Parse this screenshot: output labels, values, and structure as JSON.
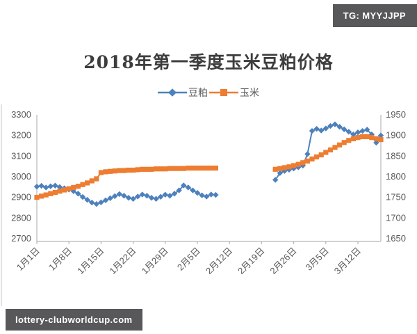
{
  "badges": {
    "top_right": "TG: MYYJJPP",
    "bottom_left": "lottery-clubworldcup.com",
    "background_color": "#58585a",
    "text_color": "#ffffff"
  },
  "chart_data": {
    "type": "line",
    "title": "2018年第一季度玉米豆粕价格",
    "title_color": "#3d3d3d",
    "axis_text_color": "#595959",
    "axis_line_color": "#b7b7b7",
    "grid": false,
    "legend_position": "top",
    "x_unit": "day of 2018 (1 = 1月1日)",
    "x_range_days": [
      1,
      76
    ],
    "x_tick_days": [
      1,
      8,
      15,
      22,
      29,
      36,
      43,
      50,
      57,
      64,
      71
    ],
    "x_tick_labels": [
      "1月1日",
      "1月8日",
      "1月15日",
      "1月22日",
      "1月29日",
      "2月5日",
      "2月12日",
      "2月19日",
      "2月26日",
      "3月5日",
      "3月12日"
    ],
    "left_axis": {
      "min": 2700,
      "max": 3300,
      "ticks": [
        3300,
        3200,
        3100,
        3000,
        2900,
        2800,
        2700
      ]
    },
    "right_axis": {
      "min": 1650,
      "max": 1950,
      "ticks": [
        1950,
        1900,
        1850,
        1800,
        1750,
        1700,
        1650
      ]
    },
    "data_gap": "no data for 2月10日–2月21日 (market closed around Spring Festival)",
    "series": [
      {
        "id": "soybean-meal",
        "name": "豆粕",
        "axis": "left",
        "color": "#4d81bd",
        "marker": "diamond",
        "points": [
          [
            1,
            2952
          ],
          [
            2,
            2956
          ],
          [
            3,
            2948
          ],
          [
            4,
            2954
          ],
          [
            5,
            2957
          ],
          [
            6,
            2950
          ],
          [
            7,
            2944
          ],
          [
            8,
            2938
          ],
          [
            9,
            2930
          ],
          [
            10,
            2918
          ],
          [
            11,
            2902
          ],
          [
            12,
            2888
          ],
          [
            13,
            2875
          ],
          [
            14,
            2868
          ],
          [
            15,
            2876
          ],
          [
            16,
            2886
          ],
          [
            17,
            2896
          ],
          [
            18,
            2906
          ],
          [
            19,
            2916
          ],
          [
            20,
            2908
          ],
          [
            21,
            2898
          ],
          [
            22,
            2893
          ],
          [
            23,
            2904
          ],
          [
            24,
            2914
          ],
          [
            25,
            2908
          ],
          [
            26,
            2898
          ],
          [
            27,
            2893
          ],
          [
            28,
            2903
          ],
          [
            29,
            2913
          ],
          [
            30,
            2908
          ],
          [
            31,
            2918
          ],
          [
            32,
            2934
          ],
          [
            33,
            2958
          ],
          [
            34,
            2948
          ],
          [
            35,
            2934
          ],
          [
            36,
            2922
          ],
          [
            37,
            2910
          ],
          [
            38,
            2904
          ],
          [
            39,
            2914
          ],
          [
            40,
            2912
          ],
          [
            53,
            2985
          ],
          [
            54,
            3018
          ],
          [
            55,
            3028
          ],
          [
            56,
            3034
          ],
          [
            57,
            3040
          ],
          [
            58,
            3046
          ],
          [
            59,
            3054
          ],
          [
            60,
            3110
          ],
          [
            61,
            3222
          ],
          [
            62,
            3232
          ],
          [
            63,
            3224
          ],
          [
            64,
            3234
          ],
          [
            65,
            3246
          ],
          [
            66,
            3254
          ],
          [
            67,
            3242
          ],
          [
            68,
            3230
          ],
          [
            69,
            3218
          ],
          [
            70,
            3205
          ],
          [
            71,
            3215
          ],
          [
            72,
            3222
          ],
          [
            73,
            3228
          ],
          [
            74,
            3205
          ],
          [
            75,
            3165
          ],
          [
            76,
            3200
          ]
        ]
      },
      {
        "id": "corn",
        "name": "玉米",
        "axis": "right",
        "color": "#ed7d31",
        "marker": "square",
        "points": [
          [
            1,
            1750
          ],
          [
            2,
            1753
          ],
          [
            3,
            1756
          ],
          [
            4,
            1759
          ],
          [
            5,
            1762
          ],
          [
            6,
            1765
          ],
          [
            7,
            1768
          ],
          [
            8,
            1771
          ],
          [
            9,
            1774
          ],
          [
            10,
            1777
          ],
          [
            11,
            1781
          ],
          [
            12,
            1785
          ],
          [
            13,
            1790
          ],
          [
            14,
            1795
          ],
          [
            15,
            1810
          ],
          [
            16,
            1812
          ],
          [
            17,
            1813
          ],
          [
            18,
            1814
          ],
          [
            19,
            1815
          ],
          [
            20,
            1815
          ],
          [
            21,
            1816
          ],
          [
            22,
            1816
          ],
          [
            23,
            1817
          ],
          [
            24,
            1818
          ],
          [
            25,
            1818
          ],
          [
            26,
            1818
          ],
          [
            27,
            1819
          ],
          [
            28,
            1819
          ],
          [
            29,
            1819
          ],
          [
            30,
            1820
          ],
          [
            31,
            1820
          ],
          [
            32,
            1820
          ],
          [
            33,
            1820
          ],
          [
            34,
            1821
          ],
          [
            35,
            1821
          ],
          [
            36,
            1821
          ],
          [
            37,
            1821
          ],
          [
            38,
            1821
          ],
          [
            39,
            1821
          ],
          [
            40,
            1821
          ],
          [
            53,
            1818
          ],
          [
            54,
            1820
          ],
          [
            55,
            1822
          ],
          [
            56,
            1824
          ],
          [
            57,
            1827
          ],
          [
            58,
            1830
          ],
          [
            59,
            1834
          ],
          [
            60,
            1838
          ],
          [
            61,
            1843
          ],
          [
            62,
            1848
          ],
          [
            63,
            1853
          ],
          [
            64,
            1859
          ],
          [
            65,
            1865
          ],
          [
            66,
            1871
          ],
          [
            67,
            1877
          ],
          [
            68,
            1883
          ],
          [
            69,
            1888
          ],
          [
            70,
            1892
          ],
          [
            71,
            1895
          ],
          [
            72,
            1897
          ],
          [
            73,
            1897
          ],
          [
            74,
            1895
          ],
          [
            75,
            1892
          ],
          [
            76,
            1890
          ]
        ]
      }
    ]
  }
}
